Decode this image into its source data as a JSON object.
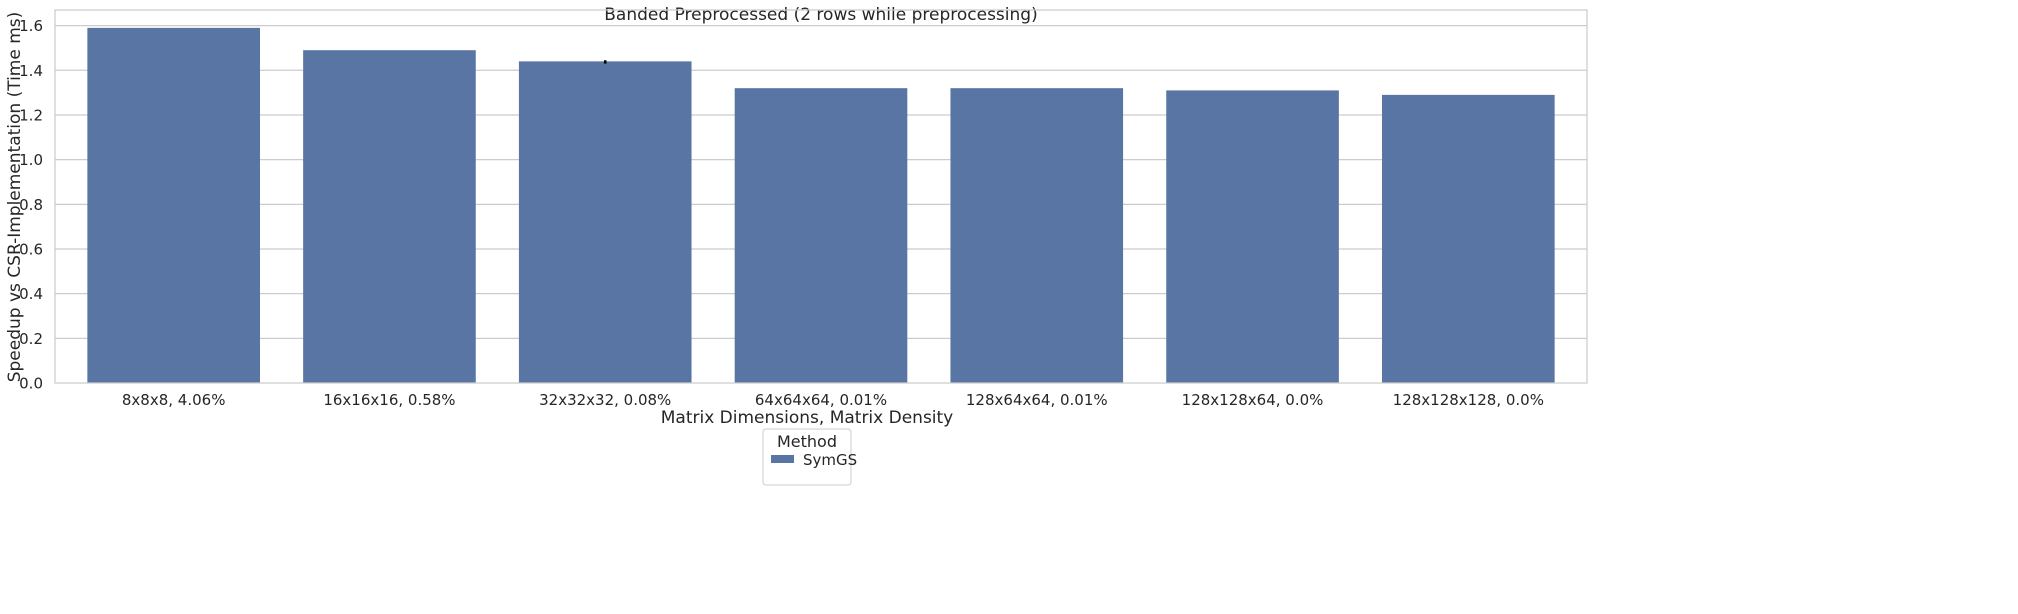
{
  "chart_data": {
    "type": "bar",
    "title": "Banded Preprocessed (2 rows while preprocessing)",
    "xlabel": "Matrix Dimensions, Matrix Density",
    "ylabel": "Speedup vs CSR-Implementation (Time ms)",
    "categories": [
      "8x8x8, 4.06%",
      "16x16x16, 0.58%",
      "32x32x32, 0.08%",
      "64x64x64, 0.01%",
      "128x64x64, 0.01%",
      "128x128x64, 0.0%",
      "128x128x128, 0.0%"
    ],
    "series": [
      {
        "name": "SymGS",
        "values": [
          1.59,
          1.49,
          1.44,
          1.32,
          1.32,
          1.31,
          1.29
        ],
        "error_bars": [
          null,
          null,
          [
            1.43,
            1.445
          ],
          null,
          null,
          null,
          null
        ]
      }
    ],
    "ylim": [
      0,
      1.67
    ],
    "yticks": [
      0.0,
      0.2,
      0.4,
      0.6,
      0.8,
      1.0,
      1.2,
      1.4,
      1.6
    ],
    "grid": true,
    "legend": {
      "title": "Method",
      "placement": "bottom-center, below axes",
      "entries": [
        "SymGS"
      ]
    },
    "colors": {
      "bar": "#5975a4",
      "grid": "#cccccc",
      "axes_edge": "#cccccc",
      "text": "#262626",
      "error_bar": "#000000"
    }
  }
}
